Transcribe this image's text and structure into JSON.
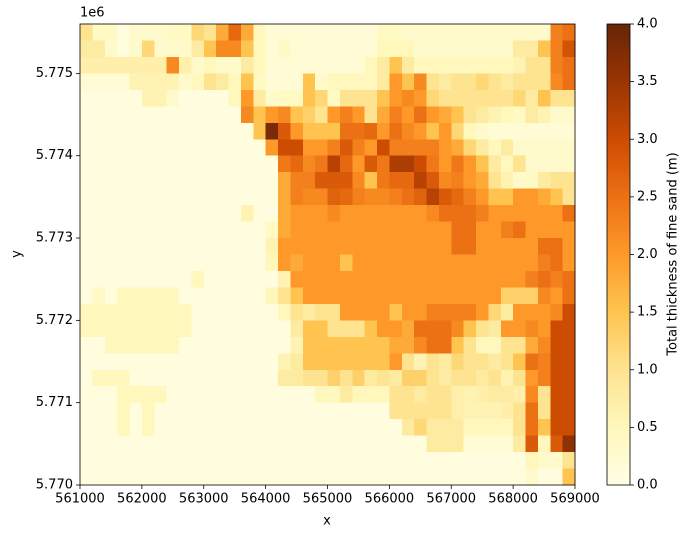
{
  "chart_data": {
    "type": "heatmap",
    "x_label": "x",
    "y_label": "y",
    "y_offset_label": "1e6",
    "colorbar_label": "Total thickness of fine sand (m)",
    "colormap": "YlOrBr",
    "xlim": [
      561000,
      569000
    ],
    "ylim": [
      5770000,
      5775600
    ],
    "xticks": [
      561000,
      562000,
      563000,
      564000,
      565000,
      566000,
      567000,
      568000,
      569000
    ],
    "yticks": [
      {
        "value": 5770000,
        "label": "5.770"
      },
      {
        "value": 5771000,
        "label": "5.771"
      },
      {
        "value": 5772000,
        "label": "5.772"
      },
      {
        "value": 5773000,
        "label": "5.773"
      },
      {
        "value": 5774000,
        "label": "5.774"
      },
      {
        "value": 5775000,
        "label": "5.775"
      }
    ],
    "clim": [
      0,
      4
    ],
    "cticks": [
      {
        "value": 0,
        "label": "0.0"
      },
      0.5,
      {
        "value": 1,
        "label": "1.0"
      },
      1.5,
      {
        "value": 2,
        "label": "2.0"
      },
      2.5,
      {
        "value": 3,
        "label": "3.0"
      },
      3.5,
      {
        "value": 4,
        "label": "4.0"
      }
    ],
    "z": [
      [
        1.0,
        0.4,
        0.4,
        0.1,
        0.3,
        0.3,
        0.3,
        0.4,
        0.4,
        1.2,
        1.0,
        1.8,
        2.6,
        1.8,
        0.5,
        0.2,
        0.2,
        0.2,
        0.2,
        0.2,
        0.2,
        0.2,
        0.2,
        0.2,
        0.4,
        0.4,
        0.3,
        0.3,
        0.3,
        0.3,
        0.3,
        0.3,
        0.3,
        0.3,
        0.3,
        0.3,
        0.3,
        0.3,
        2.3,
        2.5
      ],
      [
        0.8,
        0.8,
        0.3,
        0.1,
        0.3,
        1.2,
        0.3,
        0.3,
        0.3,
        0.8,
        1.5,
        2.2,
        2.2,
        1.5,
        0.5,
        0.2,
        0.4,
        0.2,
        0.2,
        0.2,
        0.2,
        0.2,
        0.2,
        0.2,
        0.5,
        0.5,
        0.5,
        0.3,
        0.3,
        0.3,
        0.3,
        0.3,
        0.3,
        0.3,
        0.3,
        0.8,
        0.8,
        1.5,
        2.3,
        2.9
      ],
      [
        0.7,
        0.7,
        0.7,
        0.7,
        0.7,
        0.7,
        0.7,
        2.2,
        0.7,
        0.3,
        0.5,
        0.3,
        0.3,
        0.8,
        0.5,
        0.2,
        0.2,
        0.2,
        0.2,
        0.2,
        0.2,
        0.2,
        0.2,
        0.5,
        0.8,
        1.5,
        0.8,
        0.5,
        0.5,
        0.5,
        0.5,
        0.5,
        0.5,
        0.5,
        0.5,
        0.6,
        1.0,
        1.0,
        2.3,
        2.5
      ],
      [
        0.2,
        0.2,
        0.2,
        0.2,
        0.6,
        0.6,
        0.6,
        0.6,
        0.3,
        0.5,
        1.0,
        0.8,
        0.5,
        1.5,
        0.4,
        0.2,
        0.2,
        0.2,
        1.5,
        0.3,
        0.5,
        0.5,
        0.5,
        0.5,
        0.8,
        2.0,
        1.5,
        2.2,
        1.0,
        0.8,
        1.0,
        1.0,
        1.2,
        1.0,
        0.8,
        1.0,
        1.0,
        1.0,
        2.2,
        2.5
      ],
      [
        0.1,
        0.1,
        0.1,
        0.1,
        0.1,
        0.6,
        0.6,
        0.3,
        0.1,
        0.1,
        0.1,
        0.1,
        0.5,
        2.0,
        0.8,
        0.3,
        0.4,
        0.4,
        1.5,
        1.2,
        0.4,
        1.0,
        1.0,
        1.0,
        1.5,
        2.0,
        2.2,
        2.0,
        1.2,
        1.0,
        1.0,
        1.0,
        1.0,
        1.0,
        1.0,
        1.2,
        0.8,
        1.5,
        1.0,
        1.0
      ],
      [
        0.1,
        0.1,
        0.1,
        0.1,
        0.1,
        0.1,
        0.1,
        0.1,
        0.1,
        0.1,
        0.1,
        0.1,
        0.1,
        2.2,
        1.5,
        2.0,
        2.2,
        1.5,
        1.3,
        1.0,
        2.0,
        2.3,
        2.0,
        1.0,
        1.8,
        2.3,
        2.0,
        2.5,
        2.0,
        1.8,
        1.5,
        1.0,
        0.8,
        0.6,
        0.5,
        0.4,
        0.8,
        0.6,
        0.3,
        0.3
      ],
      [
        0.1,
        0.1,
        0.1,
        0.1,
        0.1,
        0.1,
        0.1,
        0.1,
        0.1,
        0.1,
        0.1,
        0.1,
        0.1,
        0.1,
        1.5,
        3.8,
        2.8,
        2.0,
        1.5,
        1.5,
        1.5,
        2.5,
        2.5,
        2.6,
        2.0,
        2.5,
        2.2,
        2.0,
        1.5,
        2.0,
        1.2,
        0.5,
        0.3,
        0.2,
        0.2,
        0.2,
        0.2,
        0.2,
        0.2,
        0.2
      ],
      [
        0.1,
        0.1,
        0.1,
        0.1,
        0.1,
        0.1,
        0.1,
        0.1,
        0.1,
        0.1,
        0.1,
        0.1,
        0.1,
        0.1,
        0.1,
        2.0,
        3.0,
        3.0,
        2.0,
        2.0,
        2.3,
        2.8,
        2.3,
        2.0,
        3.0,
        2.3,
        2.3,
        2.3,
        2.3,
        2.0,
        1.8,
        1.2,
        0.8,
        0.5,
        0.8,
        0.3,
        0.3,
        0.3,
        0.3,
        0.3
      ],
      [
        0.1,
        0.1,
        0.1,
        0.1,
        0.1,
        0.1,
        0.1,
        0.1,
        0.1,
        0.1,
        0.1,
        0.1,
        0.1,
        0.1,
        0.1,
        0.1,
        2.4,
        2.6,
        2.2,
        2.4,
        3.2,
        2.6,
        2.0,
        2.8,
        2.4,
        3.3,
        3.3,
        3.0,
        2.4,
        2.0,
        2.4,
        2.0,
        1.5,
        0.8,
        0.5,
        1.0,
        0.3,
        0.3,
        0.3,
        0.3
      ],
      [
        0.1,
        0.1,
        0.1,
        0.1,
        0.1,
        0.1,
        0.1,
        0.1,
        0.1,
        0.1,
        0.1,
        0.1,
        0.1,
        0.1,
        0.1,
        0.1,
        1.8,
        2.3,
        2.3,
        2.8,
        2.8,
        2.8,
        2.2,
        1.5,
        2.4,
        2.6,
        2.6,
        3.2,
        2.8,
        2.2,
        2.3,
        2.0,
        1.8,
        1.0,
        0.6,
        0.3,
        0.4,
        0.8,
        1.0,
        1.0
      ],
      [
        0.1,
        0.1,
        0.1,
        0.1,
        0.1,
        0.1,
        0.1,
        0.1,
        0.1,
        0.1,
        0.1,
        0.1,
        0.1,
        0.1,
        0.1,
        0.1,
        1.8,
        2.3,
        2.2,
        2.2,
        2.7,
        2.6,
        2.3,
        2.2,
        2.2,
        2.3,
        2.5,
        2.7,
        3.2,
        2.8,
        2.6,
        2.3,
        2.0,
        1.5,
        1.5,
        2.0,
        2.0,
        1.8,
        1.5,
        1.0
      ],
      [
        0.1,
        0.1,
        0.1,
        0.1,
        0.1,
        0.1,
        0.1,
        0.1,
        0.1,
        0.1,
        0.1,
        0.1,
        0.1,
        0.6,
        0.1,
        0.1,
        1.8,
        2.0,
        2.0,
        2.0,
        2.2,
        2.0,
        2.0,
        2.0,
        2.0,
        2.0,
        2.0,
        2.0,
        2.2,
        2.5,
        2.5,
        2.5,
        2.3,
        2.0,
        2.0,
        2.0,
        2.0,
        2.0,
        2.0,
        2.5
      ],
      [
        0.1,
        0.1,
        0.1,
        0.1,
        0.1,
        0.1,
        0.1,
        0.1,
        0.1,
        0.1,
        0.1,
        0.1,
        0.1,
        0.1,
        0.1,
        0.4,
        1.8,
        2.0,
        2.0,
        2.0,
        2.0,
        2.0,
        2.0,
        2.0,
        2.0,
        2.0,
        2.0,
        2.0,
        2.0,
        2.0,
        2.5,
        2.5,
        2.0,
        2.0,
        2.3,
        2.5,
        2.0,
        2.0,
        2.0,
        2.0
      ],
      [
        0.1,
        0.1,
        0.1,
        0.1,
        0.1,
        0.1,
        0.1,
        0.1,
        0.1,
        0.1,
        0.1,
        0.1,
        0.1,
        0.1,
        0.1,
        0.6,
        2.0,
        2.0,
        2.0,
        2.0,
        2.0,
        2.0,
        2.0,
        2.0,
        2.0,
        2.0,
        2.0,
        2.0,
        2.0,
        2.0,
        2.5,
        2.5,
        2.0,
        2.0,
        2.0,
        2.0,
        2.0,
        2.5,
        2.5,
        2.0
      ],
      [
        0.1,
        0.1,
        0.1,
        0.1,
        0.1,
        0.1,
        0.1,
        0.1,
        0.1,
        0.1,
        0.1,
        0.1,
        0.1,
        0.1,
        0.1,
        0.5,
        2.0,
        1.8,
        2.0,
        2.0,
        2.0,
        1.5,
        2.0,
        2.0,
        2.0,
        2.0,
        2.0,
        2.0,
        2.0,
        2.0,
        2.0,
        2.0,
        2.0,
        2.0,
        2.0,
        2.0,
        2.0,
        2.3,
        2.5,
        2.0
      ],
      [
        0.1,
        0.1,
        0.1,
        0.1,
        0.1,
        0.1,
        0.1,
        0.1,
        0.1,
        0.5,
        0.1,
        0.1,
        0.1,
        0.1,
        0.1,
        0.1,
        0.6,
        2.0,
        2.0,
        2.0,
        2.0,
        2.0,
        2.0,
        2.0,
        2.0,
        2.0,
        2.0,
        2.0,
        2.0,
        2.0,
        2.0,
        2.0,
        2.0,
        2.0,
        2.0,
        2.0,
        2.3,
        2.5,
        2.3,
        2.5
      ],
      [
        0.1,
        0.4,
        0.1,
        0.5,
        0.5,
        0.5,
        0.5,
        0.5,
        0.1,
        0.1,
        0.1,
        0.1,
        0.1,
        0.1,
        0.1,
        0.5,
        1.0,
        1.5,
        2.0,
        2.0,
        2.0,
        2.0,
        2.0,
        2.0,
        2.0,
        2.0,
        2.0,
        2.0,
        2.0,
        2.0,
        2.0,
        2.0,
        2.0,
        2.0,
        1.3,
        1.3,
        1.3,
        2.2,
        2.0,
        2.5
      ],
      [
        0.5,
        0.5,
        0.5,
        0.5,
        0.5,
        0.5,
        0.5,
        0.5,
        0.5,
        0.1,
        0.1,
        0.1,
        0.1,
        0.1,
        0.1,
        0.1,
        0.5,
        1.0,
        0.8,
        1.0,
        1.0,
        2.0,
        2.0,
        2.0,
        2.0,
        1.5,
        2.0,
        2.0,
        2.3,
        2.3,
        2.3,
        2.3,
        2.0,
        1.2,
        0.8,
        2.0,
        2.0,
        2.0,
        2.2,
        3.0
      ],
      [
        0.5,
        0.5,
        0.5,
        0.5,
        0.5,
        0.5,
        0.5,
        0.5,
        0.5,
        0.1,
        0.1,
        0.1,
        0.1,
        0.1,
        0.1,
        0.1,
        0.1,
        0.8,
        1.5,
        1.5,
        1.0,
        1.0,
        1.0,
        1.5,
        2.0,
        2.0,
        1.8,
        2.5,
        2.5,
        2.5,
        2.2,
        1.5,
        1.0,
        0.8,
        2.0,
        2.0,
        2.2,
        2.0,
        3.0,
        3.0
      ],
      [
        0.1,
        0.1,
        0.5,
        0.5,
        0.5,
        0.5,
        0.5,
        0.5,
        0.1,
        0.1,
        0.1,
        0.1,
        0.1,
        0.1,
        0.1,
        0.1,
        0.1,
        0.6,
        1.5,
        1.5,
        1.5,
        1.5,
        1.5,
        1.5,
        1.5,
        1.8,
        1.8,
        2.2,
        2.5,
        2.5,
        1.5,
        1.0,
        0.5,
        0.5,
        1.0,
        1.0,
        1.8,
        2.2,
        3.0,
        3.0
      ],
      [
        0.1,
        0.1,
        0.1,
        0.1,
        0.1,
        0.1,
        0.1,
        0.1,
        0.1,
        0.1,
        0.1,
        0.1,
        0.1,
        0.1,
        0.1,
        0.1,
        0.6,
        0.8,
        1.5,
        1.5,
        1.5,
        1.5,
        1.5,
        1.5,
        1.5,
        2.0,
        1.0,
        0.6,
        1.0,
        0.8,
        1.2,
        1.0,
        1.0,
        0.8,
        1.0,
        1.5,
        2.5,
        2.3,
        3.0,
        3.0
      ],
      [
        0.1,
        0.5,
        0.5,
        0.5,
        0.1,
        0.1,
        0.1,
        0.1,
        0.1,
        0.1,
        0.1,
        0.1,
        0.1,
        0.1,
        0.1,
        0.1,
        0.8,
        0.8,
        1.0,
        1.0,
        1.3,
        1.0,
        1.3,
        0.8,
        1.0,
        0.8,
        1.3,
        1.3,
        1.0,
        0.8,
        1.0,
        1.0,
        0.8,
        1.0,
        0.6,
        1.0,
        2.0,
        2.3,
        3.0,
        3.0
      ],
      [
        0.1,
        0.1,
        0.1,
        0.5,
        0.5,
        0.5,
        0.5,
        0.1,
        0.1,
        0.1,
        0.1,
        0.1,
        0.1,
        0.1,
        0.1,
        0.1,
        0.1,
        0.1,
        0.1,
        0.5,
        0.5,
        0.8,
        0.5,
        0.5,
        0.5,
        1.0,
        1.0,
        0.8,
        1.0,
        1.0,
        0.7,
        0.6,
        0.7,
        0.8,
        0.8,
        0.7,
        2.2,
        1.0,
        3.0,
        3.0
      ],
      [
        0.1,
        0.1,
        0.1,
        0.5,
        0.1,
        0.5,
        0.1,
        0.1,
        0.1,
        0.1,
        0.1,
        0.1,
        0.1,
        0.1,
        0.1,
        0.1,
        0.1,
        0.1,
        0.1,
        0.1,
        0.1,
        0.1,
        0.1,
        0.1,
        0.1,
        1.0,
        1.0,
        1.0,
        1.0,
        1.0,
        0.7,
        0.6,
        0.6,
        0.6,
        0.7,
        1.0,
        2.5,
        1.0,
        3.0,
        3.0
      ],
      [
        0.1,
        0.1,
        0.1,
        0.5,
        0.1,
        0.5,
        0.1,
        0.1,
        0.1,
        0.1,
        0.1,
        0.1,
        0.1,
        0.1,
        0.1,
        0.1,
        0.1,
        0.1,
        0.1,
        0.1,
        0.1,
        0.1,
        0.1,
        0.1,
        0.1,
        0.1,
        0.8,
        1.2,
        0.8,
        0.8,
        0.8,
        0.5,
        0.5,
        0.5,
        0.5,
        1.0,
        2.5,
        1.5,
        3.0,
        3.0
      ],
      [
        0.1,
        0.1,
        0.1,
        0.1,
        0.1,
        0.1,
        0.1,
        0.1,
        0.1,
        0.1,
        0.1,
        0.1,
        0.1,
        0.1,
        0.1,
        0.1,
        0.1,
        0.1,
        0.1,
        0.1,
        0.1,
        0.1,
        0.1,
        0.1,
        0.1,
        0.1,
        0.1,
        0.1,
        0.8,
        0.8,
        0.8,
        0.2,
        0.2,
        0.2,
        0.2,
        0.8,
        2.8,
        0.5,
        2.8,
        3.6
      ],
      [
        0.1,
        0.1,
        0.1,
        0.1,
        0.1,
        0.1,
        0.1,
        0.1,
        0.1,
        0.1,
        0.1,
        0.1,
        0.1,
        0.1,
        0.1,
        0.1,
        0.1,
        0.1,
        0.1,
        0.1,
        0.1,
        0.1,
        0.1,
        0.1,
        0.1,
        0.1,
        0.1,
        0.1,
        0.1,
        0.1,
        0.1,
        0.1,
        0.1,
        0.1,
        0.1,
        0.1,
        0.5,
        0.3,
        0.3,
        1.0
      ],
      [
        0.1,
        0.1,
        0.1,
        0.1,
        0.1,
        0.1,
        0.1,
        0.1,
        0.1,
        0.1,
        0.1,
        0.1,
        0.1,
        0.1,
        0.1,
        0.1,
        0.1,
        0.1,
        0.1,
        0.1,
        0.1,
        0.1,
        0.1,
        0.1,
        0.1,
        0.1,
        0.1,
        0.1,
        0.1,
        0.1,
        0.1,
        0.1,
        0.1,
        0.1,
        0.1,
        0.1,
        0.3,
        0.1,
        0.1,
        1.5
      ]
    ]
  }
}
